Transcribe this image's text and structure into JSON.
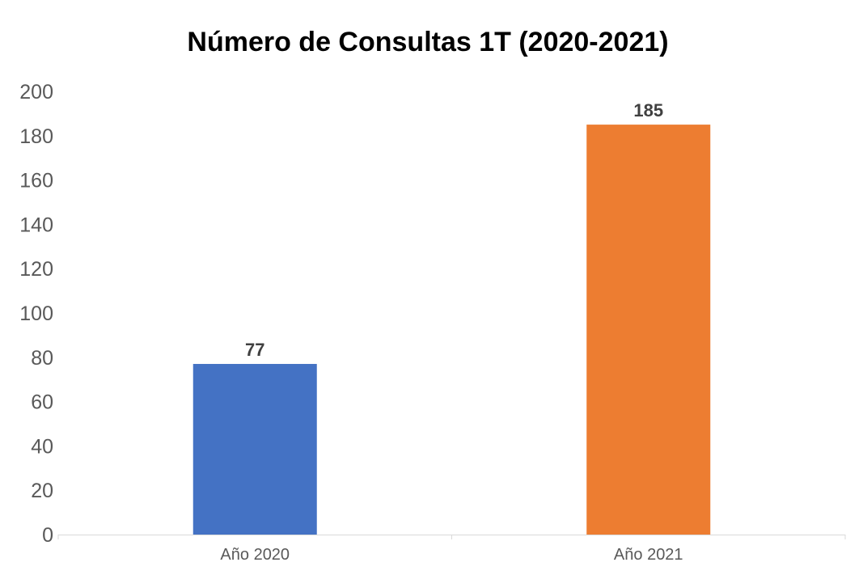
{
  "chart_data": {
    "type": "bar",
    "title": "Número de Consultas 1T (2020-2021)",
    "xlabel": "",
    "ylabel": "",
    "categories": [
      "Año 2020",
      "Año 2021"
    ],
    "values": [
      77,
      185
    ],
    "data_labels": [
      "77",
      "185"
    ],
    "bar_colors": [
      "#4472c4",
      "#ed7d31"
    ],
    "ylim": [
      0,
      200
    ],
    "yticks": [
      0,
      20,
      40,
      60,
      80,
      100,
      120,
      140,
      160,
      180,
      200
    ],
    "grid": false,
    "legend": "none"
  }
}
